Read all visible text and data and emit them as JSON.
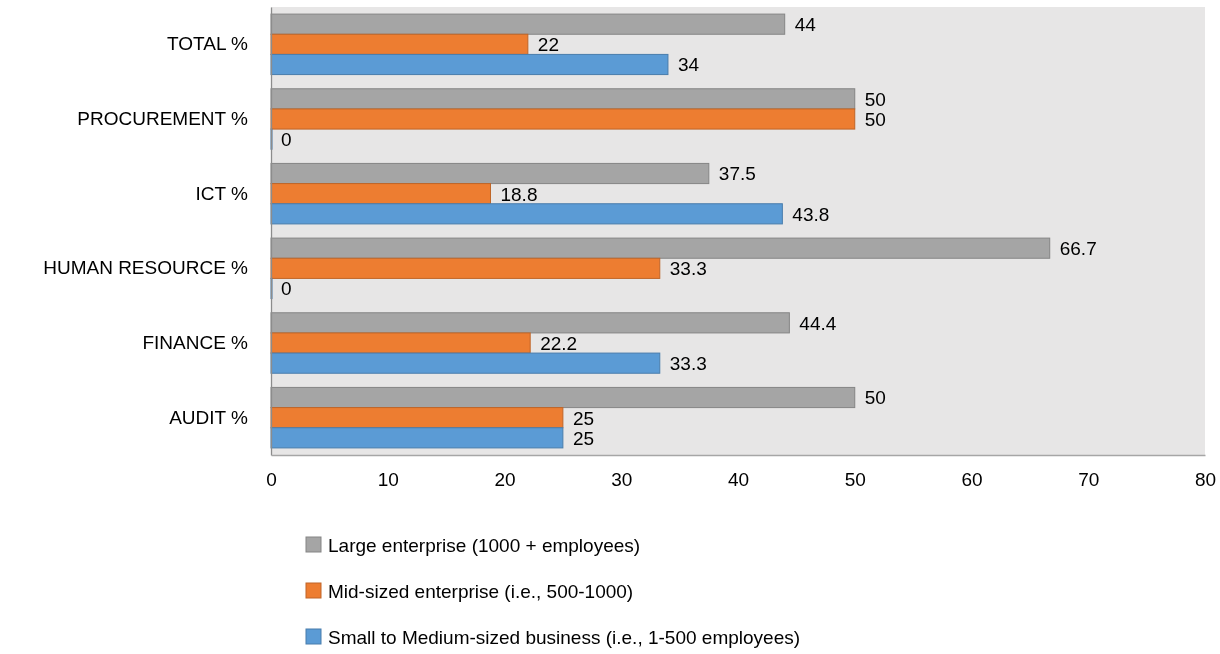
{
  "chart_data": {
    "type": "bar",
    "orientation": "horizontal",
    "categories": [
      "TOTAL %",
      "PROCUREMENT %",
      "ICT %",
      "HUMAN RESOURCE %",
      "FINANCE %",
      "AUDIT %"
    ],
    "series": [
      {
        "name": "Large enterprise (1000 + employees)",
        "color": "#a5a5a5",
        "values": [
          44,
          50,
          37.5,
          66.7,
          44.4,
          50
        ]
      },
      {
        "name": "Mid-sized enterprise (i.e., 500-1000)",
        "color": "#ed7d31",
        "values": [
          22,
          50,
          18.8,
          33.3,
          22.2,
          25
        ]
      },
      {
        "name": "Small to Medium-sized business (i.e., 1-500 employees)",
        "color": "#5b9bd5",
        "values": [
          34,
          0,
          43.8,
          0,
          33.3,
          25
        ]
      }
    ],
    "xlim": [
      0,
      80
    ],
    "xticks": [
      0,
      10,
      20,
      30,
      40,
      50,
      60,
      70,
      80
    ],
    "data_labels": true,
    "grid": false,
    "legend": "bottom"
  }
}
